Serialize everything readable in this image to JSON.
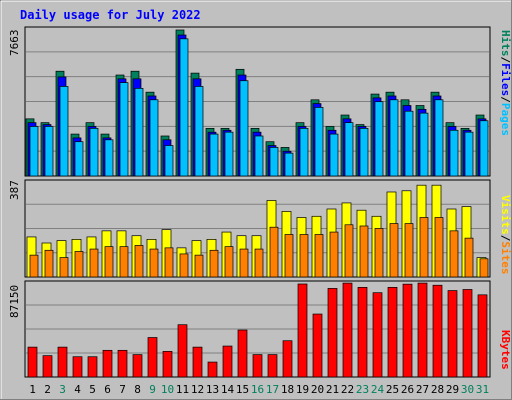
{
  "title": "Daily usage for July 2022",
  "colors": {
    "background": "#c0c0c0",
    "title": "#0000ff",
    "hits": "#00805c",
    "files": "#0000ff",
    "pages": "#00c0ff",
    "visits": "#ffff00",
    "sites": "#ff8000",
    "kbytes": "#ff0000",
    "weekday_label": "#000000",
    "weekend_label": "#00805c"
  },
  "chart_data": [
    {
      "type": "bar",
      "title": "",
      "ylabel_max": "7663",
      "ylim": [
        0,
        7663
      ],
      "legend": [
        {
          "name": "Pages",
          "color": "#00c0ff"
        },
        {
          "name": "Files",
          "color": "#0000ff"
        },
        {
          "name": "Hits",
          "color": "#00805c"
        }
      ],
      "categories": [
        "1",
        "2",
        "3",
        "4",
        "5",
        "6",
        "7",
        "8",
        "9",
        "10",
        "11",
        "12",
        "13",
        "14",
        "15",
        "16",
        "17",
        "18",
        "19",
        "20",
        "21",
        "22",
        "23",
        "24",
        "25",
        "26",
        "27",
        "28",
        "29",
        "30",
        "31"
      ],
      "series": [
        {
          "name": "Hits",
          "values": [
            3000,
            2800,
            5500,
            2200,
            2800,
            2200,
            5300,
            5500,
            4400,
            2100,
            7663,
            5400,
            2500,
            2500,
            5600,
            2500,
            1800,
            1500,
            2800,
            4000,
            2600,
            3200,
            2700,
            4300,
            4400,
            4000,
            3700,
            4400,
            2800,
            2500,
            3200
          ]
        },
        {
          "name": "Files",
          "values": [
            2800,
            2700,
            5200,
            2000,
            2600,
            2000,
            5100,
            5100,
            4200,
            1900,
            7400,
            5100,
            2300,
            2400,
            5300,
            2300,
            1600,
            1300,
            2600,
            3800,
            2400,
            3000,
            2600,
            4100,
            4200,
            3700,
            3500,
            4200,
            2600,
            2400,
            3000
          ]
        },
        {
          "name": "Pages",
          "values": [
            2600,
            2600,
            4700,
            1800,
            2500,
            1900,
            4900,
            4600,
            4000,
            1600,
            7200,
            4700,
            2200,
            2300,
            5000,
            2100,
            1500,
            1200,
            2500,
            3600,
            2200,
            2800,
            2500,
            3900,
            4000,
            3400,
            3300,
            4000,
            2400,
            2300,
            2900
          ]
        }
      ]
    },
    {
      "type": "bar",
      "title": "",
      "ylabel_max": "387",
      "ylim": [
        0,
        387
      ],
      "legend": [
        {
          "name": "Sites",
          "color": "#ff8000"
        },
        {
          "name": "Visits",
          "color": "#ffff00"
        }
      ],
      "categories": [
        "1",
        "2",
        "3",
        "4",
        "5",
        "6",
        "7",
        "8",
        "9",
        "10",
        "11",
        "12",
        "13",
        "14",
        "15",
        "16",
        "17",
        "18",
        "19",
        "20",
        "21",
        "22",
        "23",
        "24",
        "25",
        "26",
        "27",
        "28",
        "29",
        "30",
        "31"
      ],
      "series": [
        {
          "name": "Visits",
          "values": [
            165,
            140,
            150,
            155,
            165,
            190,
            190,
            170,
            155,
            195,
            120,
            150,
            155,
            185,
            170,
            170,
            315,
            270,
            245,
            250,
            280,
            305,
            275,
            250,
            350,
            355,
            378,
            378,
            280,
            290,
            80
          ]
        },
        {
          "name": "Sites",
          "values": [
            90,
            110,
            80,
            105,
            115,
            125,
            125,
            130,
            115,
            120,
            95,
            90,
            110,
            125,
            115,
            115,
            205,
            175,
            175,
            175,
            185,
            215,
            210,
            200,
            220,
            220,
            245,
            245,
            190,
            160,
            75
          ]
        }
      ]
    },
    {
      "type": "bar",
      "title": "",
      "ylabel_max": "87150",
      "ylim": [
        0,
        87150
      ],
      "legend": [
        {
          "name": "KBytes",
          "color": "#ff0000"
        }
      ],
      "categories": [
        "1",
        "2",
        "3",
        "4",
        "5",
        "6",
        "7",
        "8",
        "9",
        "10",
        "11",
        "12",
        "13",
        "14",
        "15",
        "16",
        "17",
        "18",
        "19",
        "20",
        "21",
        "22",
        "23",
        "24",
        "25",
        "26",
        "27",
        "28",
        "29",
        "30",
        "31"
      ],
      "series": [
        {
          "name": "KBytes",
          "values": [
            28000,
            20000,
            28000,
            19000,
            19000,
            25000,
            25000,
            21000,
            37000,
            24000,
            49000,
            28000,
            14000,
            29000,
            44000,
            21000,
            21000,
            34000,
            87150,
            59000,
            83000,
            88000,
            84000,
            79000,
            84000,
            87000,
            88000,
            86000,
            81000,
            82000,
            77000
          ]
        }
      ]
    }
  ],
  "days": [
    {
      "label": "1",
      "weekend": false
    },
    {
      "label": "2",
      "weekend": false
    },
    {
      "label": "3",
      "weekend": true
    },
    {
      "label": "4",
      "weekend": false
    },
    {
      "label": "5",
      "weekend": false
    },
    {
      "label": "6",
      "weekend": false
    },
    {
      "label": "7",
      "weekend": false
    },
    {
      "label": "8",
      "weekend": false
    },
    {
      "label": "9",
      "weekend": true
    },
    {
      "label": "10",
      "weekend": true
    },
    {
      "label": "11",
      "weekend": false
    },
    {
      "label": "12",
      "weekend": false
    },
    {
      "label": "13",
      "weekend": false
    },
    {
      "label": "14",
      "weekend": false
    },
    {
      "label": "15",
      "weekend": false
    },
    {
      "label": "16",
      "weekend": true
    },
    {
      "label": "17",
      "weekend": true
    },
    {
      "label": "18",
      "weekend": false
    },
    {
      "label": "19",
      "weekend": false
    },
    {
      "label": "20",
      "weekend": false
    },
    {
      "label": "21",
      "weekend": false
    },
    {
      "label": "22",
      "weekend": false
    },
    {
      "label": "23",
      "weekend": true
    },
    {
      "label": "24",
      "weekend": true
    },
    {
      "label": "25",
      "weekend": false
    },
    {
      "label": "26",
      "weekend": false
    },
    {
      "label": "27",
      "weekend": false
    },
    {
      "label": "28",
      "weekend": false
    },
    {
      "label": "29",
      "weekend": false
    },
    {
      "label": "30",
      "weekend": true
    },
    {
      "label": "31",
      "weekend": true
    }
  ]
}
